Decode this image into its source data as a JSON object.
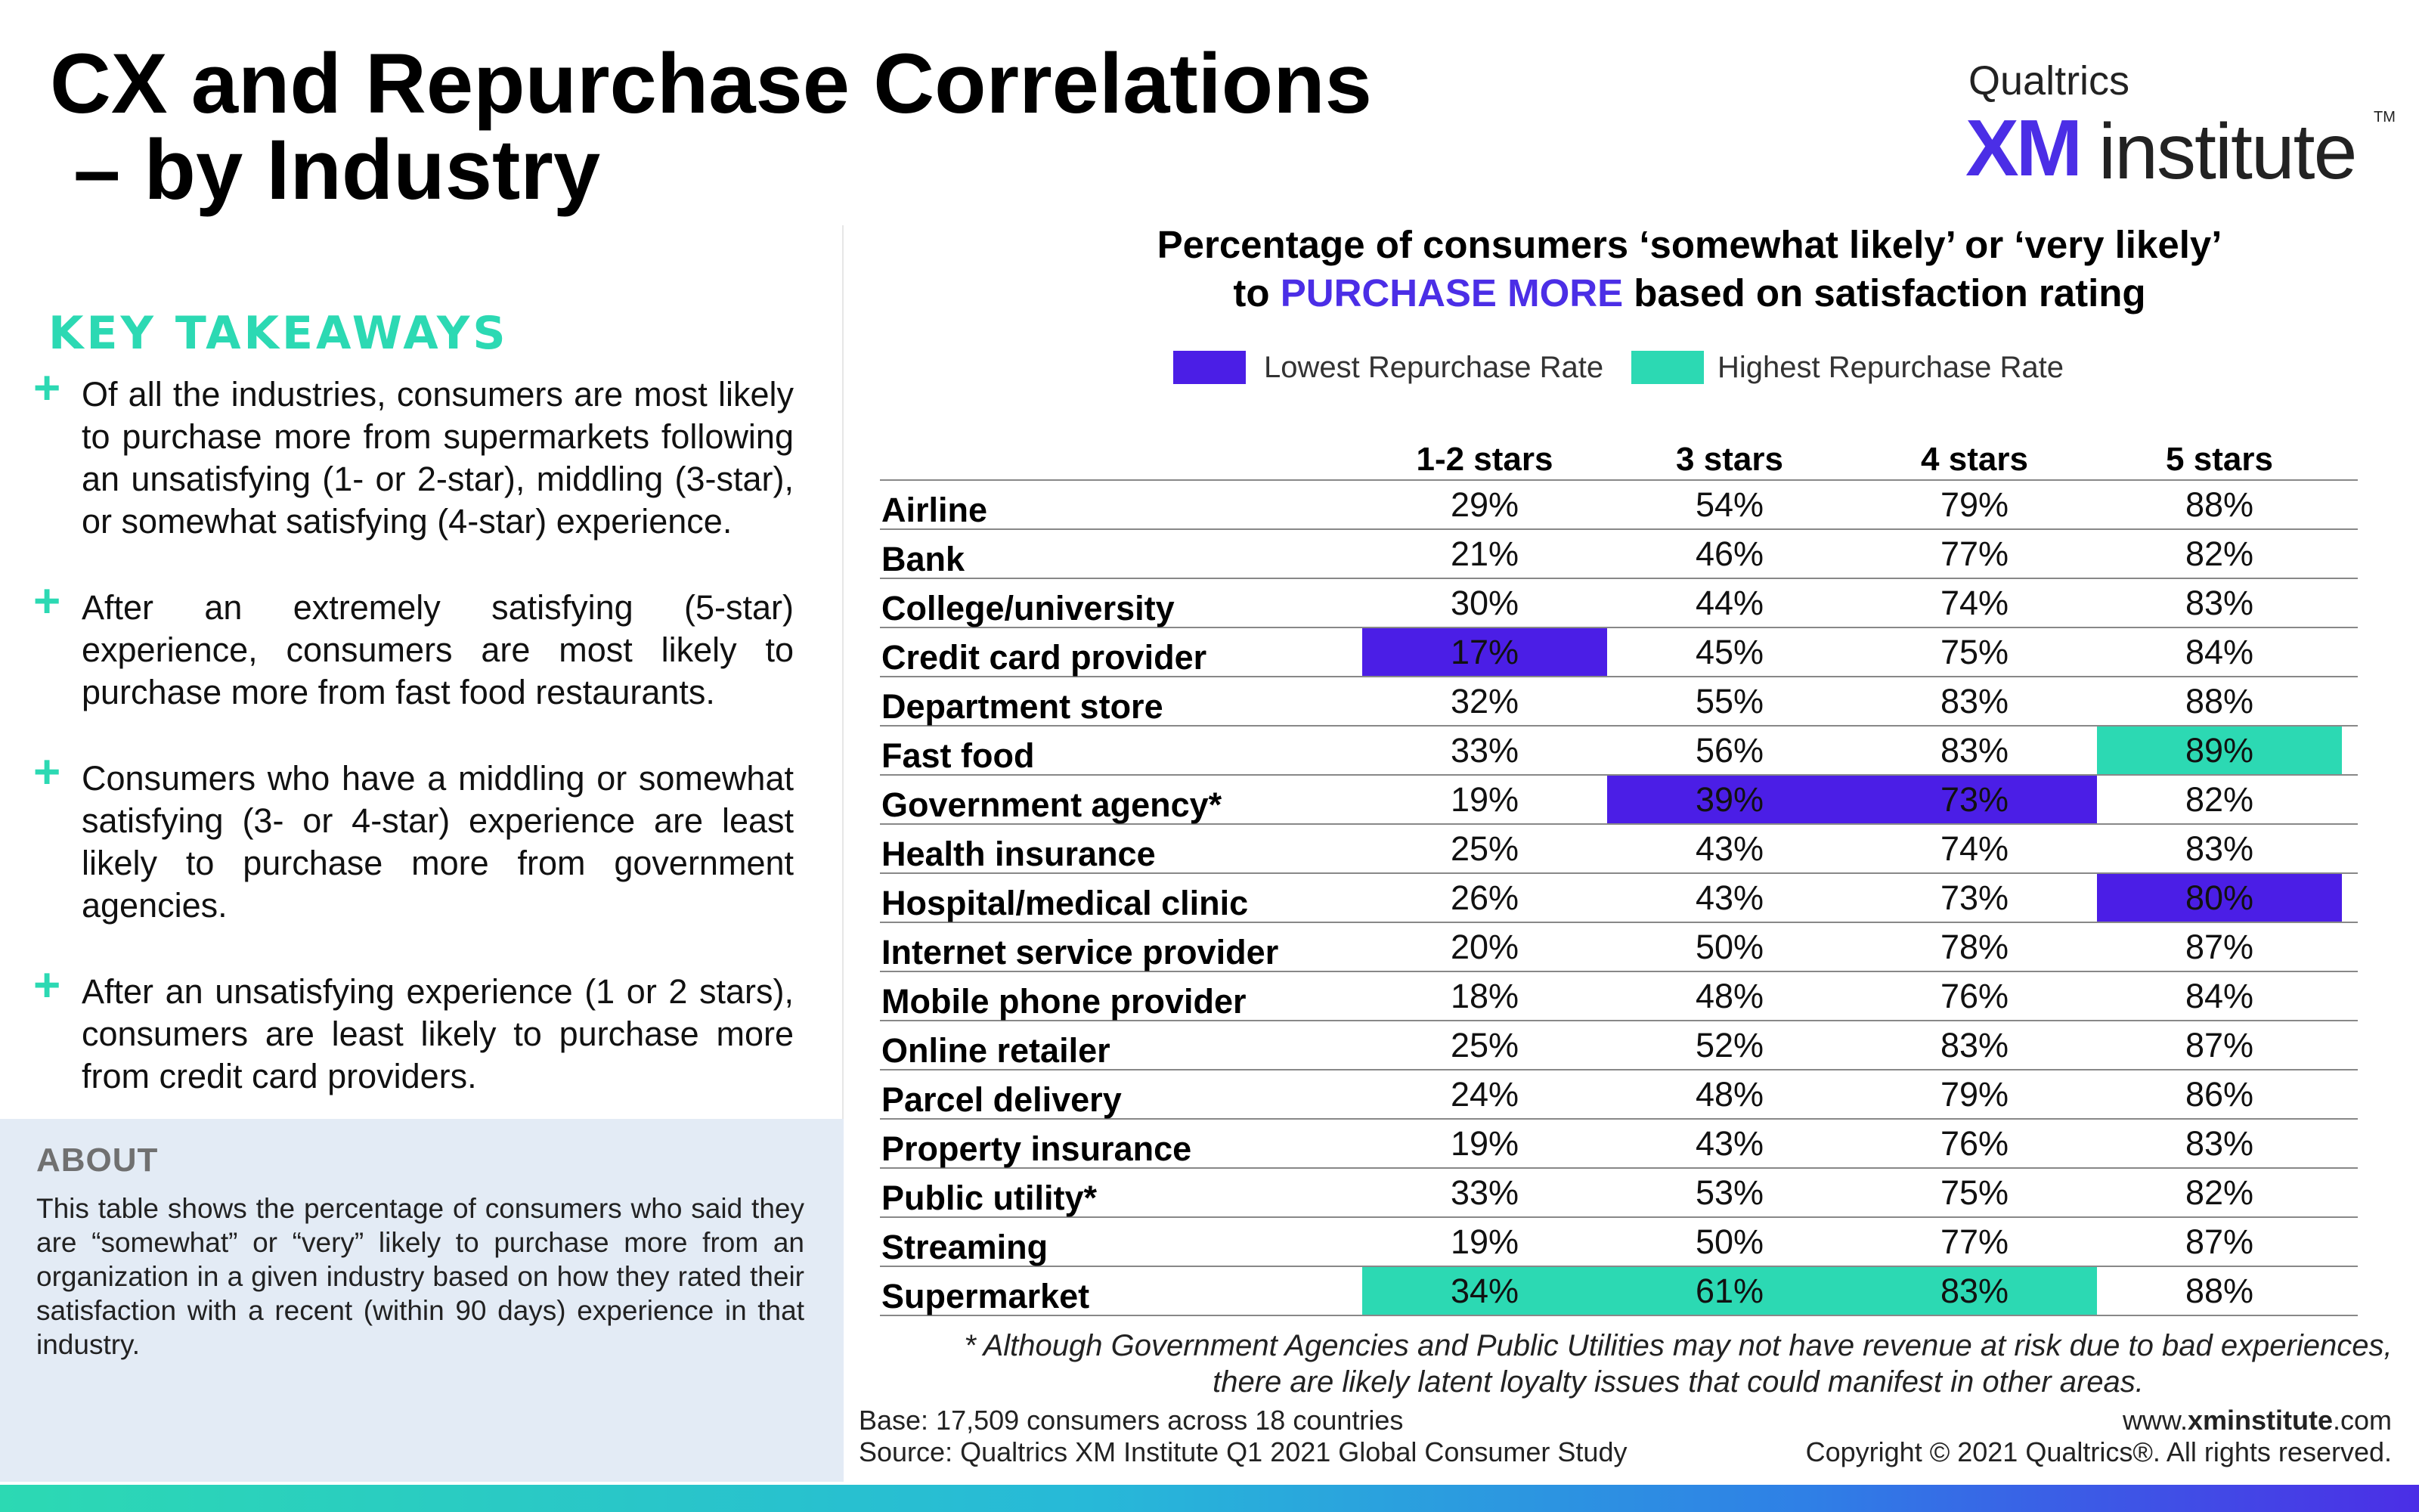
{
  "title": {
    "line1": "CX and Repurchase Correlations",
    "line2": " – by Industry"
  },
  "logo": {
    "brand": "Qualtrics",
    "xm": "XM",
    "institute": "institute",
    "tm": "TM"
  },
  "takeaways": {
    "heading": "KEY TAKEAWAYS",
    "bullet_symbol": "+",
    "items": [
      "Of all the industries, consumers are most likely to purchase more from supermarkets following an unsatisfying (1- or 2-star), middling (3-star), or somewhat satisfying (4-star) experience.",
      "After an extremely satisfying (5-star) experience, consumers are most likely to purchase more from fast food restaurants.",
      "Consumers who have a middling or somewhat satisfying (3- or 4-star) experience are least likely to purchase more from government agencies.",
      "After an unsatisfying experience (1 or 2 stars), consumers are least likely to purchase more from credit card providers."
    ]
  },
  "about": {
    "heading": "ABOUT",
    "text": "This table shows the percentage of consumers who said they are “somewhat” or “very” likely to purchase more from an organization in a given industry based on how they rated their satisfaction with a recent (within 90 days) experience in that industry."
  },
  "chart_title": {
    "line1": "Percentage of consumers ‘somewhat likely’ or ‘very likely’",
    "line2_pre": "to ",
    "line2_accent": "PURCHASE MORE",
    "line2_post": " based on satisfaction rating"
  },
  "legend": {
    "low_label": "Lowest Repurchase Rate",
    "high_label": "Highest Repurchase Rate"
  },
  "colors": {
    "low": "#4b1ee6",
    "high": "#2cd9b3",
    "accent": "#4b2ee6"
  },
  "chart_data": {
    "type": "table",
    "columns": [
      "1-2 stars",
      "3 stars",
      "4 stars",
      "5 stars"
    ],
    "rows": [
      {
        "label": "Airline",
        "values": [
          "29%",
          "54%",
          "79%",
          "88%"
        ],
        "highlight": [
          "",
          "",
          "",
          ""
        ]
      },
      {
        "label": "Bank",
        "values": [
          "21%",
          "46%",
          "77%",
          "82%"
        ],
        "highlight": [
          "",
          "",
          "",
          ""
        ]
      },
      {
        "label": "College/university",
        "values": [
          "30%",
          "44%",
          "74%",
          "83%"
        ],
        "highlight": [
          "",
          "",
          "",
          ""
        ]
      },
      {
        "label": "Credit card provider",
        "values": [
          "17%",
          "45%",
          "75%",
          "84%"
        ],
        "highlight": [
          "low",
          "",
          "",
          ""
        ]
      },
      {
        "label": "Department store",
        "values": [
          "32%",
          "55%",
          "83%",
          "88%"
        ],
        "highlight": [
          "",
          "",
          "",
          ""
        ]
      },
      {
        "label": "Fast food",
        "values": [
          "33%",
          "56%",
          "83%",
          "89%"
        ],
        "highlight": [
          "",
          "",
          "",
          "high"
        ]
      },
      {
        "label": "Government agency*",
        "values": [
          "19%",
          "39%",
          "73%",
          "82%"
        ],
        "highlight": [
          "",
          "low",
          "low",
          ""
        ]
      },
      {
        "label": "Health insurance",
        "values": [
          "25%",
          "43%",
          "74%",
          "83%"
        ],
        "highlight": [
          "",
          "",
          "",
          ""
        ]
      },
      {
        "label": "Hospital/medical clinic",
        "values": [
          "26%",
          "43%",
          "73%",
          "80%"
        ],
        "highlight": [
          "",
          "",
          "",
          "low"
        ]
      },
      {
        "label": "Internet service provider",
        "values": [
          "20%",
          "50%",
          "78%",
          "87%"
        ],
        "highlight": [
          "",
          "",
          "",
          ""
        ]
      },
      {
        "label": "Mobile phone provider",
        "values": [
          "18%",
          "48%",
          "76%",
          "84%"
        ],
        "highlight": [
          "",
          "",
          "",
          ""
        ]
      },
      {
        "label": "Online retailer",
        "values": [
          "25%",
          "52%",
          "83%",
          "87%"
        ],
        "highlight": [
          "",
          "",
          "",
          ""
        ]
      },
      {
        "label": "Parcel delivery",
        "values": [
          "24%",
          "48%",
          "79%",
          "86%"
        ],
        "highlight": [
          "",
          "",
          "",
          ""
        ]
      },
      {
        "label": "Property insurance",
        "values": [
          "19%",
          "43%",
          "76%",
          "83%"
        ],
        "highlight": [
          "",
          "",
          "",
          ""
        ]
      },
      {
        "label": "Public utility*",
        "values": [
          "33%",
          "53%",
          "75%",
          "82%"
        ],
        "highlight": [
          "",
          "",
          "",
          ""
        ]
      },
      {
        "label": "Streaming",
        "values": [
          "19%",
          "50%",
          "77%",
          "87%"
        ],
        "highlight": [
          "",
          "",
          "",
          ""
        ]
      },
      {
        "label": "Supermarket",
        "values": [
          "34%",
          "61%",
          "83%",
          "88%"
        ],
        "highlight": [
          "high",
          "high",
          "high",
          ""
        ]
      }
    ]
  },
  "footnote": {
    "line1": "* Although Government Agencies and Public Utilities may not have revenue at risk due to bad experiences,",
    "line2": "there are likely latent loyalty issues that could manifest in other areas."
  },
  "source": {
    "base": "Base: 17,509 consumers across 18 countries",
    "source": "Source: Qualtrics XM Institute Q1 2021 Global Consumer Study"
  },
  "footer": {
    "url_pre": "www.",
    "url_bold": "xminstitute",
    "url_post": ".com",
    "copyright": "Copyright © 2021 Qualtrics®. All rights reserved."
  }
}
